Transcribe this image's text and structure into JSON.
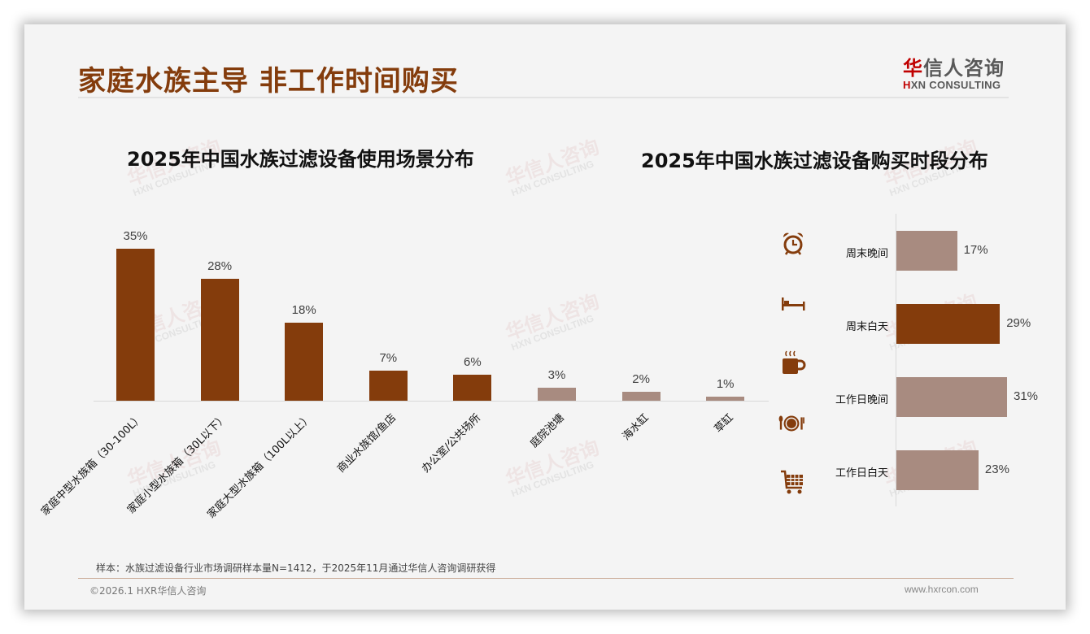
{
  "page": {
    "title": "家庭水族主导 非工作时间购买",
    "logo": {
      "cn_red": "华",
      "cn_rest": "信人咨询",
      "en_red": "H",
      "en_rest": "XN CONSULTING"
    },
    "watermark": {
      "cn": "华信人咨询",
      "en": "HXN CONSULTING"
    },
    "note": "样本：水族过滤设备行业市场调研样本量N=1412，于2025年11月通过华信人咨询调研获得",
    "copyright": "©2026.1 HXR华信人咨询",
    "website": "www.hxrcon.com"
  },
  "colors": {
    "primary": "#843c0c",
    "secondary": "#a88b80",
    "title": "#843c0c"
  },
  "chart_data": [
    {
      "type": "bar",
      "title": "2025年中国水族过滤设备使用场景分布",
      "categories": [
        "家庭中型水族箱（30-100L）",
        "家庭小型水族箱（30L以下）",
        "家庭大型水族箱（100L以上）",
        "商业水族馆/鱼店",
        "办公室/公共场所",
        "庭院池塘",
        "海水缸",
        "草缸"
      ],
      "values": [
        35,
        28,
        18,
        7,
        6,
        3,
        2,
        1
      ],
      "labels": [
        "35%",
        "28%",
        "18%",
        "7%",
        "6%",
        "3%",
        "2%",
        "1%"
      ],
      "highlight": [
        true,
        true,
        true,
        true,
        true,
        false,
        false,
        false
      ],
      "xlabel": "",
      "ylabel": "",
      "ylim": [
        0,
        35
      ],
      "grid": false,
      "legend": null
    },
    {
      "type": "bar",
      "orientation": "horizontal",
      "title": "2025年中国水族过滤设备购买时段分布",
      "categories": [
        "周末晚间",
        "周末白天",
        "工作日晚间",
        "工作日白天"
      ],
      "values": [
        17,
        29,
        31,
        23
      ],
      "labels": [
        "17%",
        "29%",
        "31%",
        "23%"
      ],
      "highlight": [
        false,
        true,
        false,
        false
      ],
      "icons": [
        "alarm-clock-icon",
        "bed-icon",
        "coffee-mug-icon",
        "plate-cutlery-icon",
        "shopping-cart-icon"
      ],
      "xlabel": "",
      "ylabel": "",
      "xlim": [
        0,
        31
      ],
      "grid": false,
      "legend": null
    }
  ]
}
